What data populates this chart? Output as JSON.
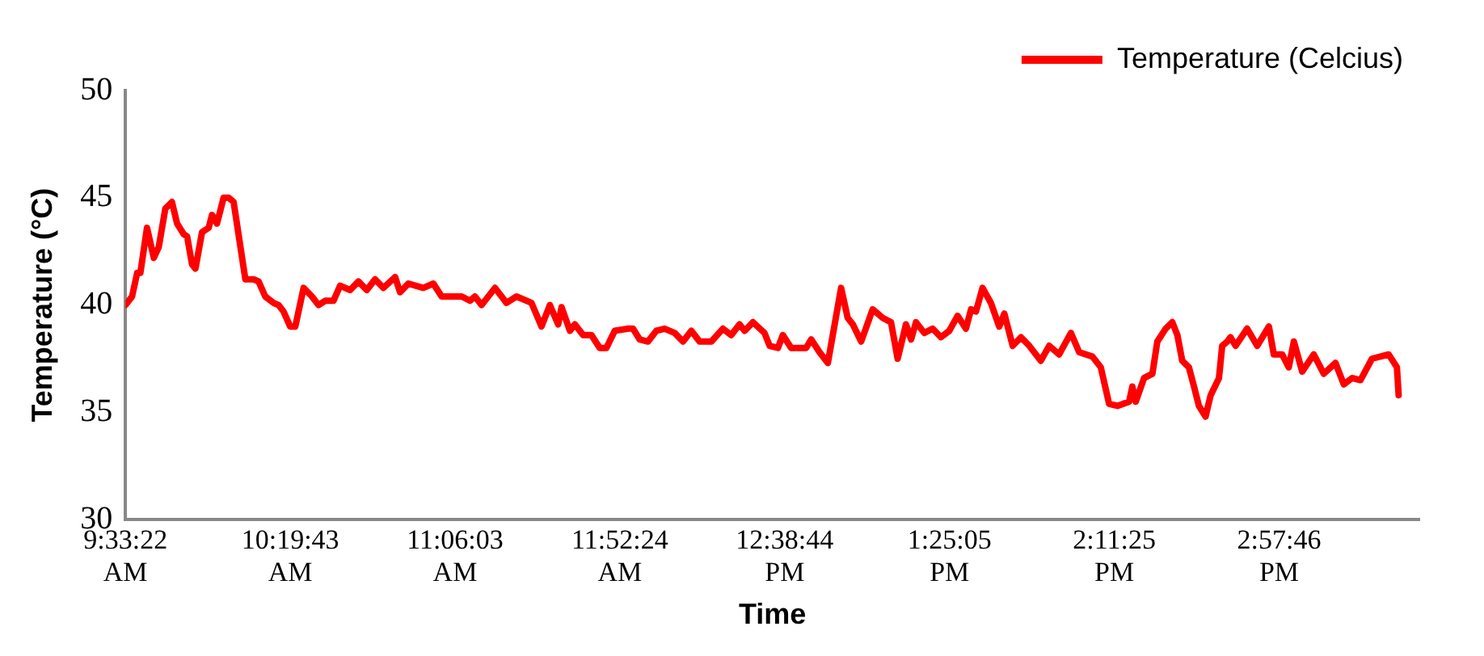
{
  "chart_data": {
    "type": "line",
    "xlabel": "Time",
    "ylabel": "Temperature (°C)",
    "x": [
      9.556,
      9.587,
      9.611,
      9.626,
      9.657,
      9.689,
      9.712,
      9.743,
      9.774,
      9.798,
      9.829,
      9.845,
      9.868,
      9.884,
      9.915,
      9.946,
      9.962,
      9.985,
      10.016,
      10.04,
      10.063,
      10.118,
      10.157,
      10.18,
      10.211,
      10.25,
      10.274,
      10.297,
      10.328,
      10.352,
      10.391,
      10.43,
      10.461,
      10.492,
      10.531,
      10.562,
      10.609,
      10.648,
      10.687,
      10.726,
      10.765,
      10.82,
      10.843,
      10.882,
      10.952,
      10.999,
      11.038,
      11.132,
      11.171,
      11.194,
      11.225,
      11.288,
      11.342,
      11.389,
      11.459,
      11.506,
      11.545,
      11.584,
      11.6,
      11.639,
      11.662,
      11.701,
      11.74,
      11.779,
      11.81,
      11.849,
      11.912,
      11.935,
      11.966,
      12.005,
      12.044,
      12.083,
      12.13,
      12.169,
      12.208,
      12.247,
      12.302,
      12.356,
      12.395,
      12.434,
      12.458,
      12.497,
      12.551,
      12.575,
      12.614,
      12.637,
      12.676,
      12.746,
      12.77,
      12.809,
      12.848,
      12.871,
      12.91,
      12.941,
      12.965,
      13.004,
      13.058,
      13.105,
      13.144,
      13.175,
      13.214,
      13.238,
      13.261,
      13.3,
      13.339,
      13.378,
      13.417,
      13.456,
      13.495,
      13.519,
      13.542,
      13.573,
      13.612,
      13.651,
      13.675,
      13.714,
      13.753,
      13.792,
      13.846,
      13.885,
      13.932,
      13.987,
      14.026,
      14.088,
      14.127,
      14.166,
      14.205,
      14.26,
      14.275,
      14.291,
      14.33,
      14.369,
      14.392,
      14.431,
      14.462,
      14.486,
      14.509,
      14.54,
      14.564,
      14.587,
      14.618,
      14.642,
      14.681,
      14.696,
      14.72,
      14.735,
      14.759,
      14.813,
      14.86,
      14.915,
      14.938,
      14.977,
      15.008,
      15.032,
      15.071,
      15.125,
      15.172,
      15.227,
      15.266,
      15.305,
      15.344,
      15.398,
      15.437,
      15.476,
      15.515,
      15.523
    ],
    "series": [
      {
        "name": "Temperature (Celcius)",
        "color": "#ff0000",
        "values": [
          40.0,
          40.4,
          41.5,
          41.5,
          43.6,
          42.2,
          42.7,
          44.5,
          44.8,
          43.8,
          43.3,
          43.2,
          41.9,
          41.7,
          43.4,
          43.6,
          44.2,
          43.8,
          45.0,
          45.0,
          44.8,
          41.2,
          41.2,
          41.1,
          40.4,
          40.1,
          40.0,
          39.7,
          39.0,
          39.0,
          40.8,
          40.4,
          40.0,
          40.2,
          40.2,
          40.9,
          40.7,
          41.1,
          40.7,
          41.2,
          40.8,
          41.3,
          40.6,
          41.0,
          40.8,
          41.0,
          40.4,
          40.4,
          40.2,
          40.4,
          40.0,
          40.8,
          40.1,
          40.4,
          40.1,
          39.0,
          40.0,
          39.1,
          39.9,
          38.8,
          39.1,
          38.6,
          38.6,
          38.0,
          38.0,
          38.8,
          38.9,
          38.9,
          38.4,
          38.3,
          38.8,
          38.9,
          38.7,
          38.3,
          38.8,
          38.3,
          38.3,
          38.9,
          38.6,
          39.1,
          38.8,
          39.2,
          38.7,
          38.1,
          38.0,
          38.6,
          38.0,
          38.0,
          38.4,
          37.8,
          37.3,
          38.6,
          40.8,
          39.4,
          39.1,
          38.3,
          39.8,
          39.4,
          39.2,
          37.5,
          39.1,
          38.4,
          39.2,
          38.7,
          38.9,
          38.5,
          38.8,
          39.5,
          38.9,
          39.8,
          39.7,
          40.8,
          40.1,
          39.0,
          39.6,
          38.1,
          38.5,
          38.1,
          37.4,
          38.1,
          37.7,
          38.7,
          37.8,
          37.6,
          37.1,
          35.4,
          35.3,
          35.5,
          36.2,
          35.5,
          36.6,
          36.8,
          38.3,
          38.9,
          39.2,
          38.6,
          37.4,
          37.1,
          36.2,
          35.3,
          34.8,
          35.8,
          36.6,
          38.1,
          38.3,
          38.5,
          38.1,
          38.9,
          38.1,
          39.0,
          37.7,
          37.7,
          37.1,
          38.3,
          36.9,
          37.7,
          36.8,
          37.3,
          36.3,
          36.6,
          36.5,
          37.5,
          37.6,
          37.7,
          37.1,
          35.8
        ]
      }
    ],
    "xlim": [
      9.556,
      15.62
    ],
    "xticks": [
      {
        "value": 9.5561,
        "label": "9:33:22 AM"
      },
      {
        "value": 10.3286,
        "label": "10:19:43 AM"
      },
      {
        "value": 11.1008,
        "label": "11:06:03 AM"
      },
      {
        "value": 11.8733,
        "label": "11:52:24 AM"
      },
      {
        "value": 12.6456,
        "label": "12:38:44 PM"
      },
      {
        "value": 13.4181,
        "label": "1:25:05 PM"
      },
      {
        "value": 14.1903,
        "label": "2:11:25 PM"
      },
      {
        "value": 14.9628,
        "label": "2:57:46 PM"
      }
    ],
    "ylim": [
      30,
      50
    ],
    "yticks": [
      30,
      35,
      40,
      45,
      50
    ],
    "grid": false,
    "legend": "top right",
    "marker": "none",
    "line_style": "solid"
  }
}
